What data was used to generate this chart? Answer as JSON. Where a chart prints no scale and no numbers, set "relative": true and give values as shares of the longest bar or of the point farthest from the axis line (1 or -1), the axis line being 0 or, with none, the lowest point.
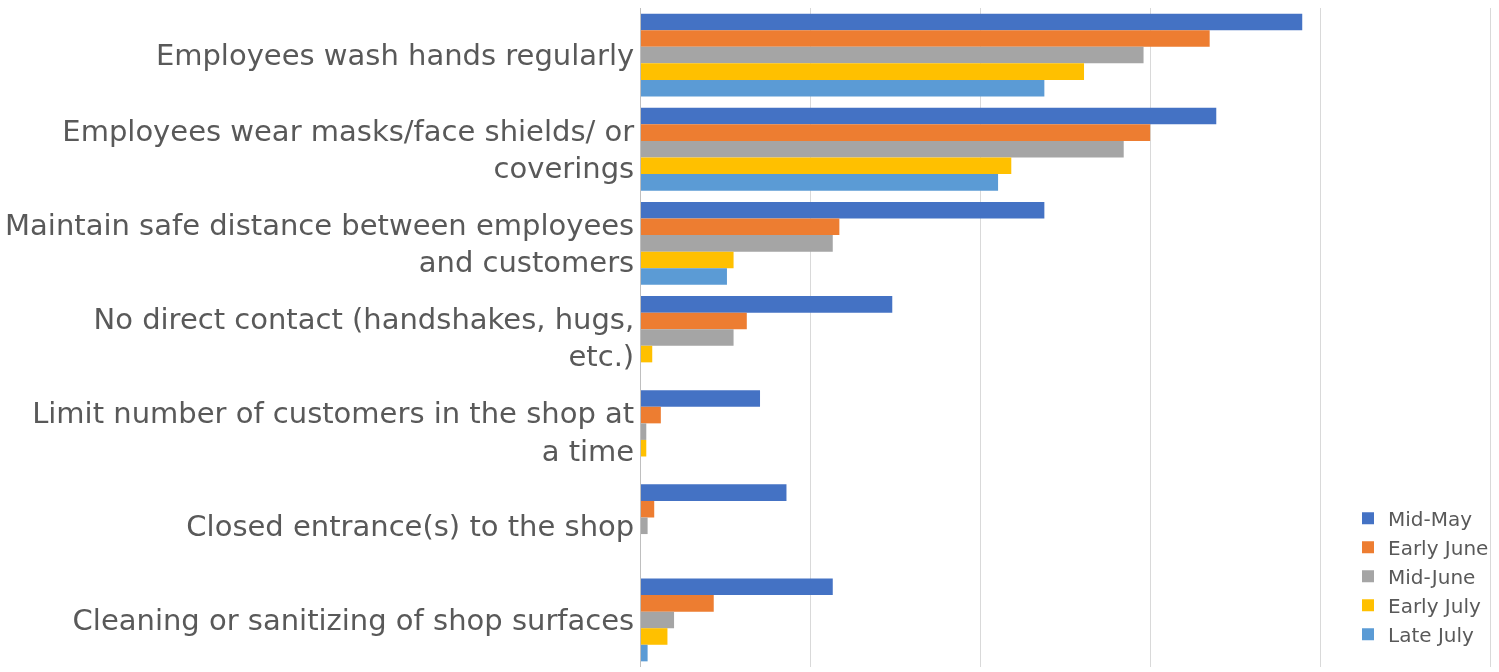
{
  "chart_data": {
    "type": "bar",
    "orientation": "horizontal",
    "relative": true,
    "grid": "x",
    "legend": "bottom right",
    "categories": [
      "Employees wash hands regularly",
      "Employees wear masks/face shields/ or coverings",
      "Maintain safe distance between employees and customers",
      "No direct contact (handshakes, hugs, etc.)",
      "Limit number of customers in the shop at a time",
      "Closed entrance(s) to the shop",
      "Cleaning or sanitizing of shop surfaces"
    ],
    "series": [
      {
        "name": "Mid-May",
        "color": "#4472c4",
        "values": [
          1.0,
          0.87,
          0.61,
          0.38,
          0.18,
          0.22,
          0.29
        ]
      },
      {
        "name": "Early June",
        "color": "#ed7d31",
        "values": [
          0.86,
          0.77,
          0.3,
          0.16,
          0.03,
          0.02,
          0.11
        ]
      },
      {
        "name": "Mid-June",
        "color": "#a5a5a5",
        "values": [
          0.76,
          0.73,
          0.29,
          0.14,
          0.008,
          0.01,
          0.05
        ]
      },
      {
        "name": "Early July",
        "color": "#ffc000",
        "values": [
          0.67,
          0.56,
          0.14,
          0.017,
          0.008,
          0,
          0.04
        ]
      },
      {
        "name": "Late July",
        "color": "#5b9bd5",
        "values": [
          0.61,
          0.54,
          0.13,
          0,
          0,
          0,
          0.01
        ]
      }
    ]
  }
}
